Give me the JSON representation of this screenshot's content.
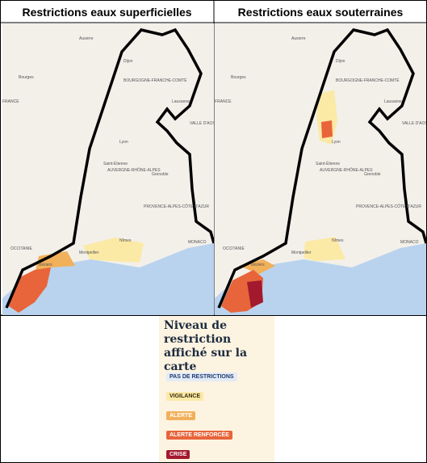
{
  "panels": [
    {
      "title": "Restrictions eaux superficielles"
    },
    {
      "title": "Restrictions eaux souterraines"
    }
  ],
  "map_labels": [
    "Auxerre",
    "Dijon",
    "Bourges",
    "BOURGOGNE-FRANCHE-COMTÉ",
    "Lausanne",
    "VALLE D'AOSTA",
    "Lyon",
    "Saint-Étienne",
    "Grenoble",
    "AUVERGNE-RHÔNE-ALPES",
    "Nîmes",
    "Montpellier",
    "Béziers",
    "OCCITANIE",
    "PROVENCE-ALPES-CÔTE D'AZUR",
    "MONACO",
    "FRANCE"
  ],
  "legend": {
    "title": "Niveau de restriction affiché sur la carte",
    "items": [
      {
        "label": "PAS DE RESTRICTIONS",
        "color": "#e3ebf6",
        "text_color": "#1f3a6e"
      },
      {
        "label": "VIGILANCE",
        "color": "#fbe9a6",
        "text_color": "#3a2d10"
      },
      {
        "label": "ALERTE",
        "color": "#f1b05a",
        "text_color": "#ffffff"
      },
      {
        "label": "ALERTE RENFORCÉE",
        "color": "#e8643a",
        "text_color": "#ffffff"
      },
      {
        "label": "CRISE",
        "color": "#a3192e",
        "text_color": "#ffffff"
      }
    ]
  }
}
